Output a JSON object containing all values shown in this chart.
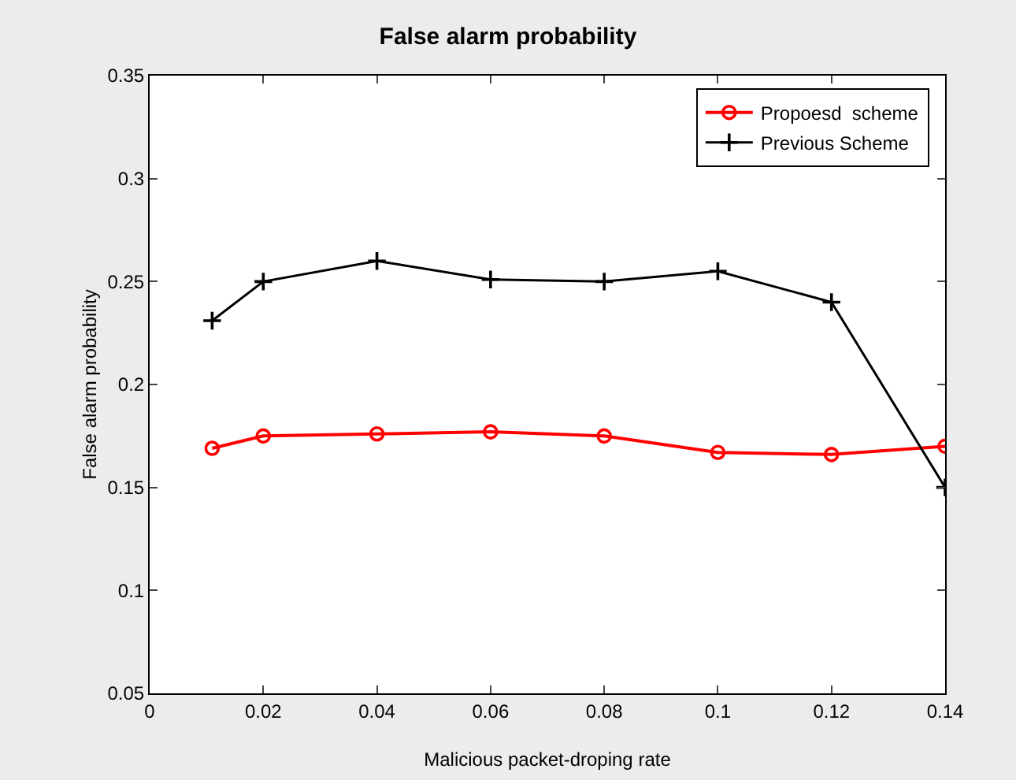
{
  "chart_data": {
    "type": "line",
    "title": "False alarm probability",
    "xlabel": "Malicious packet-droping rate",
    "ylabel": "False alarm probability",
    "x": [
      0.011,
      0.02,
      0.04,
      0.06,
      0.08,
      0.1,
      0.12,
      0.14
    ],
    "series": [
      {
        "name": "Propoesd  scheme",
        "color": "#ff0000",
        "marker": "circle",
        "values": [
          0.169,
          0.175,
          0.176,
          0.177,
          0.175,
          0.167,
          0.166,
          0.17
        ]
      },
      {
        "name": "Previous Scheme",
        "color": "#000000",
        "marker": "cross",
        "values": [
          0.231,
          0.25,
          0.26,
          0.251,
          0.25,
          0.255,
          0.24,
          0.15
        ]
      }
    ],
    "xlim": [
      0,
      0.14
    ],
    "xticks": [
      0,
      0.02,
      0.04,
      0.06,
      0.08,
      0.1,
      0.12,
      0.14
    ],
    "ylim": [
      0.05,
      0.35
    ],
    "yticks": [
      0.05,
      0.1,
      0.15,
      0.2,
      0.25,
      0.3,
      0.35
    ],
    "grid": false,
    "legend": "top right"
  }
}
